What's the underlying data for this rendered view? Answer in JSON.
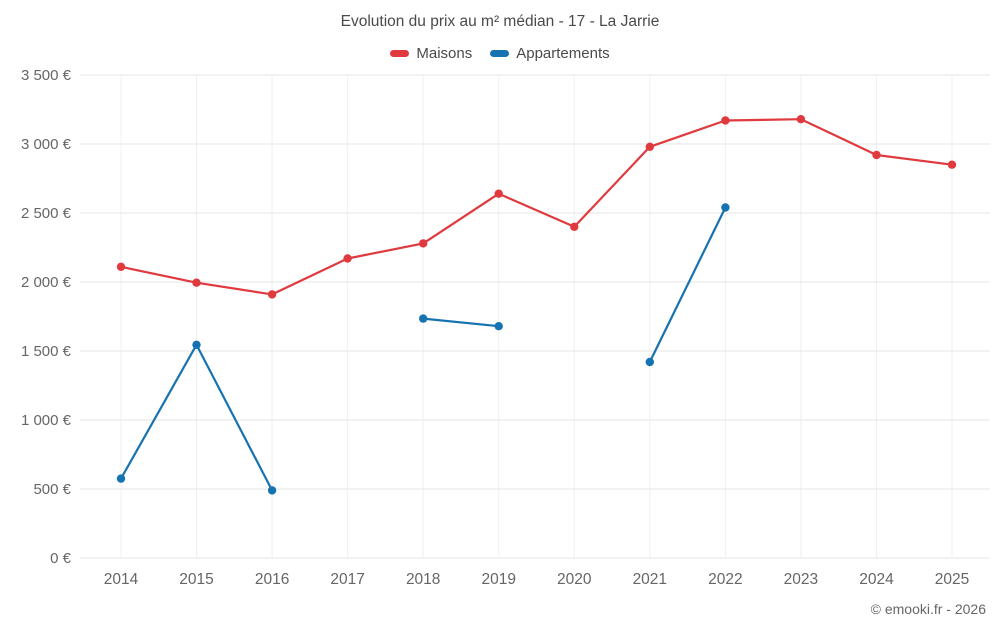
{
  "header": {
    "title": "Evolution du prix au m² médian - 17 - La Jarrie"
  },
  "footer": {
    "credit": "© emooki.fr - 2026"
  },
  "chart_data": {
    "type": "line",
    "title": "Evolution du prix au m² médian - 17 - La Jarrie",
    "categories": [
      "2014",
      "2015",
      "2016",
      "2017",
      "2018",
      "2019",
      "2020",
      "2021",
      "2022",
      "2023",
      "2024",
      "2025"
    ],
    "series": [
      {
        "name": "Maisons",
        "color": "#e0393e",
        "values": [
          2110,
          1995,
          1910,
          2170,
          2280,
          2640,
          2400,
          2980,
          3170,
          3180,
          2920,
          2850
        ]
      },
      {
        "name": "Appartements",
        "color": "#1673b1",
        "values": [
          575,
          1545,
          490,
          null,
          1735,
          1680,
          null,
          1420,
          2540,
          null,
          null,
          null
        ]
      }
    ],
    "xlabel": "",
    "ylabel": "",
    "ylim": [
      0,
      3500
    ],
    "ytick_step": 500,
    "ytick_labels": [
      "0 €",
      "500 €",
      "1 000 €",
      "1 500 €",
      "2 000 €",
      "2 500 €",
      "3 000 €",
      "3 500 €"
    ],
    "grid": true,
    "legend_position": "top"
  }
}
